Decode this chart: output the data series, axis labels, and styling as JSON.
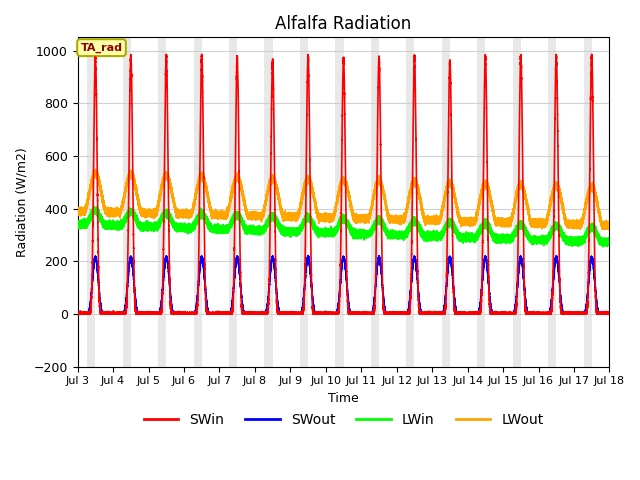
{
  "title": "Alfalfa Radiation",
  "xlabel": "Time",
  "ylabel": "Radiation (W/m2)",
  "ylim": [
    -200,
    1050
  ],
  "xlim_days": [
    3,
    18
  ],
  "xtick_days": [
    3,
    4,
    5,
    6,
    7,
    8,
    9,
    10,
    11,
    12,
    13,
    14,
    15,
    16,
    17,
    18
  ],
  "xtick_labels": [
    "Jul 3",
    "Jul 4",
    "Jul 5",
    "Jul 6",
    "Jul 7",
    "Jul 8",
    "Jul 9",
    "Jul 10",
    "Jul 11",
    "Jul 12",
    "Jul 13",
    "Jul 14",
    "Jul 15",
    "Jul 16",
    "Jul 17",
    "Jul 18"
  ],
  "grid_color": "#d0d0d0",
  "bg_color_light": "#e8e8e8",
  "bg_color_dark": "#d0d0d0",
  "annotation_text": "TA_rad",
  "annotation_bg": "#ffffaa",
  "annotation_border": "#aaaa00",
  "series_SWin_color": "#ff0000",
  "series_SWout_color": "#0000ff",
  "series_LWin_color": "#00ff00",
  "series_LWout_color": "#ffa500",
  "linewidth": 1.2,
  "legend_items": [
    "SWin",
    "SWout",
    "LWin",
    "LWout"
  ],
  "legend_colors": [
    "#ff0000",
    "#0000ff",
    "#00ff00",
    "#ffa500"
  ],
  "figsize": [
    6.4,
    4.8
  ],
  "dpi": 100
}
